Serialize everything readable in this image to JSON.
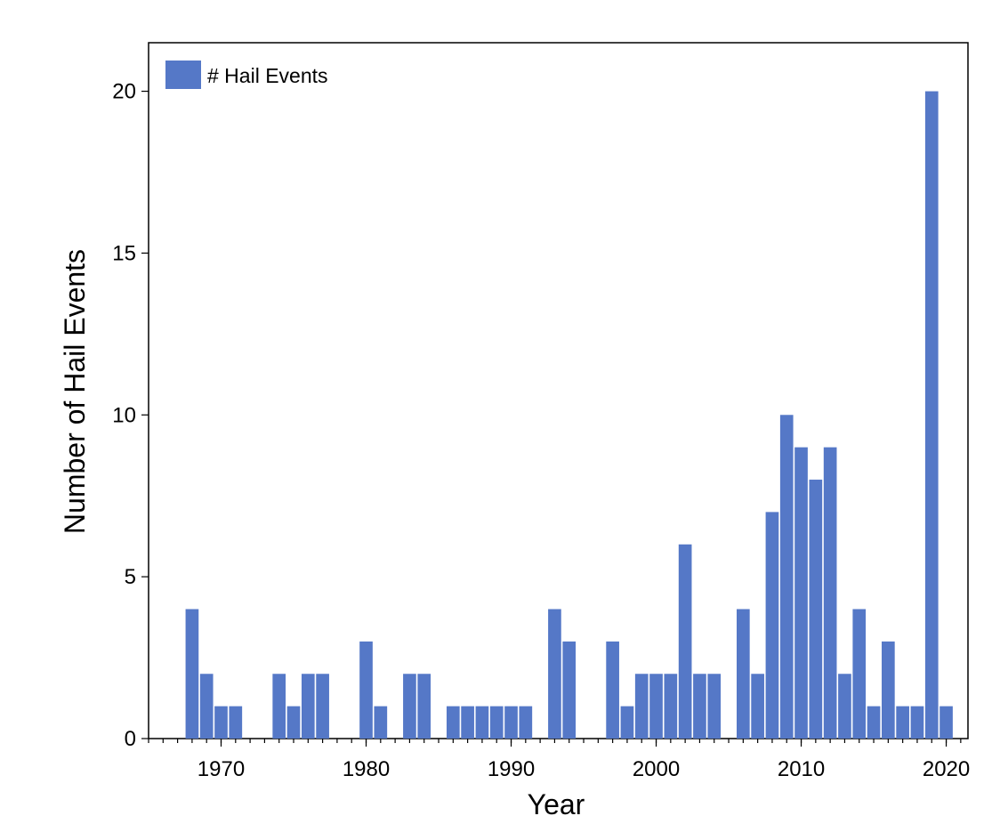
{
  "colors": {
    "bar": "#5578c7",
    "axis": "#000000",
    "background": "#ffffff"
  },
  "chart_data": {
    "type": "bar",
    "title": "",
    "xlabel": "Year",
    "ylabel": "Number of Hail Events",
    "xlim": [
      1965,
      2021.5
    ],
    "ylim": [
      0,
      21.5
    ],
    "x_major_ticks": [
      1970,
      1980,
      1990,
      2000,
      2010,
      2020
    ],
    "x_minor_ticks": [
      1965,
      1966,
      1967,
      1968,
      1969,
      1970,
      1971,
      1972,
      1973,
      1974,
      1975,
      1976,
      1977,
      1978,
      1979,
      1980,
      1981,
      1982,
      1983,
      1984,
      1985,
      1986,
      1987,
      1988,
      1989,
      1990,
      1991,
      1992,
      1993,
      1994,
      1995,
      1996,
      1997,
      1998,
      1999,
      2000,
      2001,
      2002,
      2003,
      2004,
      2005,
      2006,
      2007,
      2008,
      2009,
      2010,
      2011,
      2012,
      2013,
      2014,
      2015,
      2016,
      2017,
      2018,
      2019,
      2020,
      2021
    ],
    "y_ticks": [
      0,
      5,
      10,
      15,
      20
    ],
    "grid": false,
    "legend": {
      "position": "top-left"
    },
    "series": [
      {
        "name": "# Hail Events",
        "color": "#5578c7",
        "x": [
          1968,
          1969,
          1970,
          1971,
          1974,
          1975,
          1976,
          1977,
          1980,
          1981,
          1983,
          1984,
          1986,
          1987,
          1988,
          1989,
          1990,
          1991,
          1993,
          1994,
          1997,
          1998,
          1999,
          2000,
          2001,
          2002,
          2003,
          2004,
          2006,
          2007,
          2008,
          2009,
          2010,
          2011,
          2012,
          2013,
          2014,
          2015,
          2016,
          2017,
          2018,
          2019,
          2020
        ],
        "values": [
          4,
          2,
          1,
          1,
          2,
          1,
          2,
          2,
          3,
          1,
          2,
          2,
          1,
          1,
          1,
          1,
          1,
          1,
          4,
          3,
          3,
          1,
          2,
          2,
          2,
          6,
          2,
          2,
          4,
          2,
          7,
          10,
          9,
          8,
          9,
          2,
          4,
          1,
          3,
          1,
          1,
          20,
          1
        ]
      }
    ]
  }
}
